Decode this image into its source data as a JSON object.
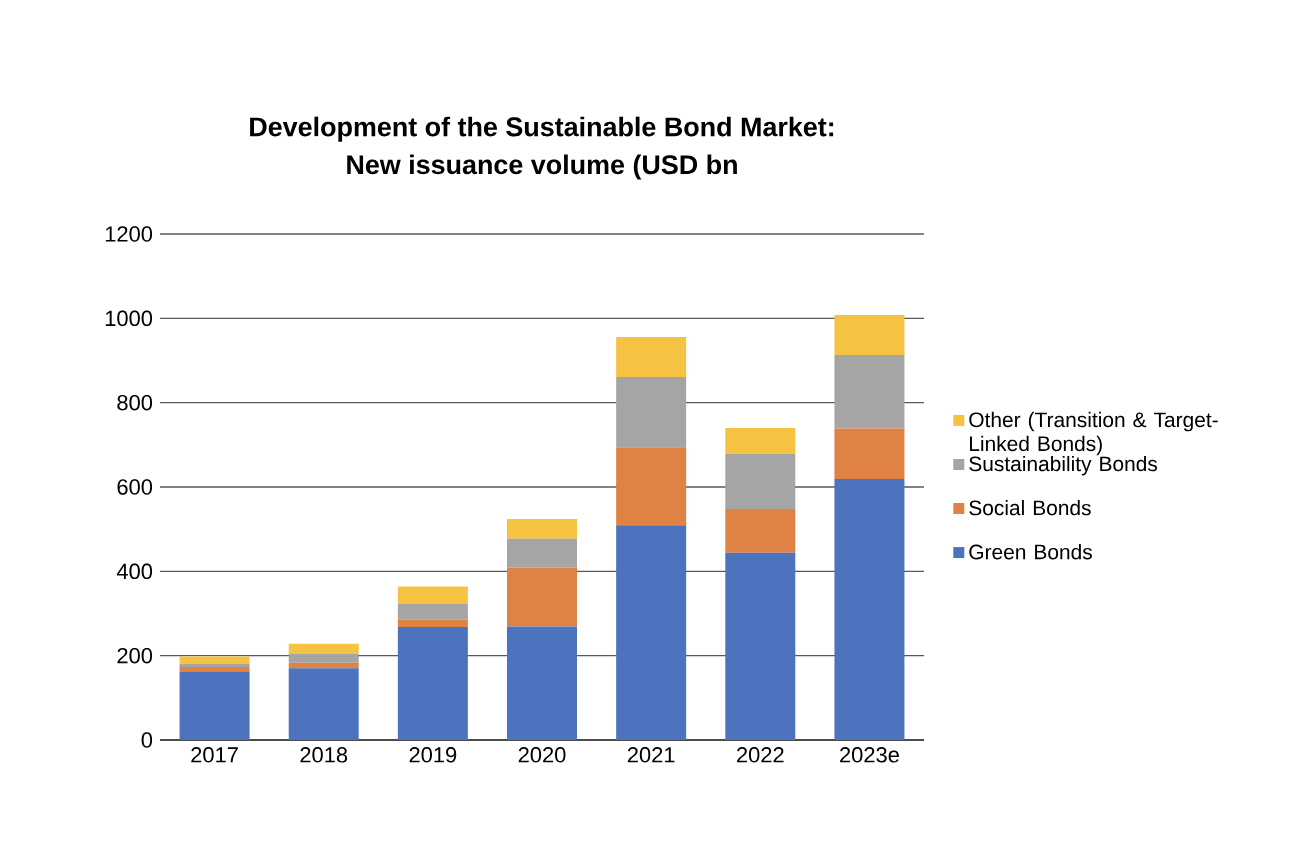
{
  "chart_data": {
    "type": "bar",
    "stacked": true,
    "title": "Development of the Sustainable Bond Market:\nNew issuance volume (USD bn",
    "categories": [
      "2017",
      "2018",
      "2019",
      "2020",
      "2021",
      "2022",
      "2023e"
    ],
    "series": [
      {
        "name": "Green Bonds",
        "color": "#4e73be",
        "values": [
          161,
          170,
          268,
          269,
          509,
          444,
          619
        ]
      },
      {
        "name": "Social Bonds",
        "color": "#df8244",
        "values": [
          12,
          13,
          17,
          140,
          185,
          104,
          120
        ]
      },
      {
        "name": "Sustainability Bonds",
        "color": "#a5a5a5",
        "values": [
          8,
          22,
          38,
          68,
          167,
          131,
          174
        ]
      },
      {
        "name": "Other (Transition & Target-Linked Bonds)",
        "color": "#f5c242",
        "values": [
          17,
          23,
          41,
          47,
          95,
          61,
          95
        ]
      }
    ],
    "ylim": [
      0,
      1200
    ],
    "yticks": [
      0,
      200,
      400,
      600,
      800,
      1000,
      1200
    ],
    "grid": "y",
    "legend": "right"
  }
}
